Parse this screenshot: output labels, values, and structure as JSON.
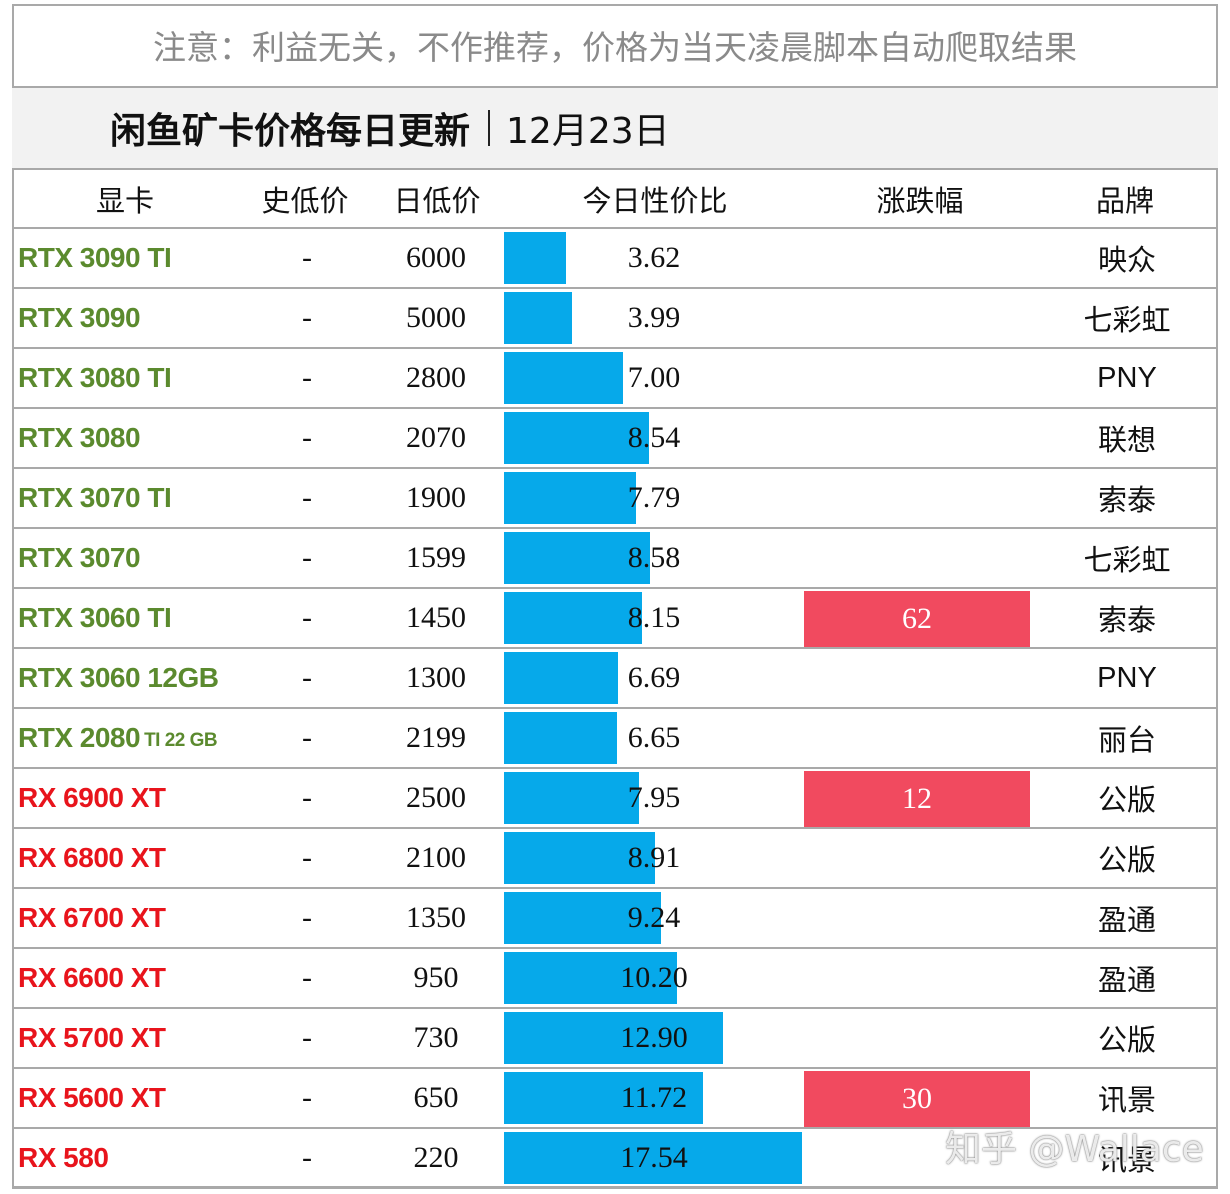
{
  "notice": "注意：利益无关，不作推荐，价格为当天凌晨脚本自动爬取结果",
  "title": {
    "main": "闲鱼矿卡价格每日更新",
    "date": "12月23日"
  },
  "headers": {
    "card": "显卡",
    "historic_low": "史低价",
    "daily_low": "日低价",
    "value_ratio": "今日性价比",
    "change": "涨跌幅",
    "brand": "品牌"
  },
  "colors": {
    "nvidia_name": "#5b8a2e",
    "amd_name": "#e8141c",
    "ratio_bar": "#06a9ea",
    "change_bg": "#f14a5f",
    "title_bg": "#f2f2f2",
    "grid": "#a9a9a9"
  },
  "ratio_scale_max": 20,
  "rows": [
    {
      "name": "RTX 3090 TI",
      "vendor": "nvidia",
      "historic_low": "-",
      "price": "6000",
      "ratio": 3.62,
      "ratio_text": "3.62",
      "change": "",
      "brand": "映众"
    },
    {
      "name": "RTX 3090",
      "vendor": "nvidia",
      "historic_low": "-",
      "price": "5000",
      "ratio": 3.99,
      "ratio_text": "3.99",
      "change": "",
      "brand": "七彩虹"
    },
    {
      "name": "RTX 3080 TI",
      "vendor": "nvidia",
      "historic_low": "-",
      "price": "2800",
      "ratio": 7.0,
      "ratio_text": "7.00",
      "change": "",
      "brand": "PNY"
    },
    {
      "name": "RTX 3080",
      "vendor": "nvidia",
      "historic_low": "-",
      "price": "2070",
      "ratio": 8.54,
      "ratio_text": "8.54",
      "change": "",
      "brand": "联想"
    },
    {
      "name": "RTX 3070 TI",
      "vendor": "nvidia",
      "historic_low": "-",
      "price": "1900",
      "ratio": 7.79,
      "ratio_text": "7.79",
      "change": "",
      "brand": "索泰"
    },
    {
      "name": "RTX 3070",
      "vendor": "nvidia",
      "historic_low": "-",
      "price": "1599",
      "ratio": 8.58,
      "ratio_text": "8.58",
      "change": "",
      "brand": "七彩虹"
    },
    {
      "name": "RTX 3060 TI",
      "vendor": "nvidia",
      "historic_low": "-",
      "price": "1450",
      "ratio": 8.15,
      "ratio_text": "8.15",
      "change": "62",
      "brand": "索泰"
    },
    {
      "name": "RTX 3060 12GB",
      "vendor": "nvidia",
      "historic_low": "-",
      "price": "1300",
      "ratio": 6.69,
      "ratio_text": "6.69",
      "change": "",
      "brand": "PNY"
    },
    {
      "name": "RTX 2080",
      "name_suffix": "TI 22 GB",
      "vendor": "nvidia",
      "historic_low": "-",
      "price": "2199",
      "ratio": 6.65,
      "ratio_text": "6.65",
      "change": "",
      "brand": "丽台"
    },
    {
      "name": "RX 6900 XT",
      "vendor": "amd",
      "historic_low": "-",
      "price": "2500",
      "ratio": 7.95,
      "ratio_text": "7.95",
      "change": "12",
      "brand": "公版"
    },
    {
      "name": "RX 6800 XT",
      "vendor": "amd",
      "historic_low": "-",
      "price": "2100",
      "ratio": 8.91,
      "ratio_text": "8.91",
      "change": "",
      "brand": "公版"
    },
    {
      "name": "RX 6700 XT",
      "vendor": "amd",
      "historic_low": "-",
      "price": "1350",
      "ratio": 9.24,
      "ratio_text": "9.24",
      "change": "",
      "brand": "盈通"
    },
    {
      "name": "RX 6600 XT",
      "vendor": "amd",
      "historic_low": "-",
      "price": "950",
      "ratio": 10.2,
      "ratio_text": "10.20",
      "change": "",
      "brand": "盈通"
    },
    {
      "name": "RX 5700 XT",
      "vendor": "amd",
      "historic_low": "-",
      "price": "730",
      "ratio": 12.9,
      "ratio_text": "12.90",
      "change": "",
      "brand": "公版"
    },
    {
      "name": "RX 5600 XT",
      "vendor": "amd",
      "historic_low": "-",
      "price": "650",
      "ratio": 11.72,
      "ratio_text": "11.72",
      "change": "30",
      "brand": "讯景"
    },
    {
      "name": "RX 580",
      "vendor": "amd",
      "historic_low": "-",
      "price": "220",
      "ratio": 17.54,
      "ratio_text": "17.54",
      "change": "",
      "brand": "讯景"
    }
  ],
  "watermark": "知乎 @Wallace"
}
